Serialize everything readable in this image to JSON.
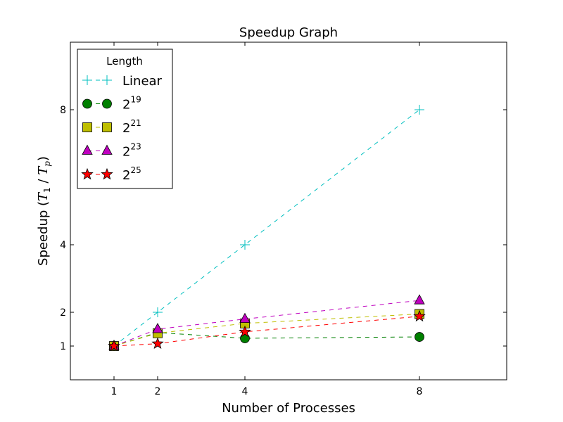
{
  "chart_data": {
    "type": "line",
    "title": "Speedup Graph",
    "xlabel": "Number of Processes",
    "ylabel_parts": {
      "main": "Speedup (",
      "t1": "T",
      "t1_sub": "1",
      "sep": " / ",
      "tp": "T",
      "tp_sub": "p",
      "end": ")"
    },
    "xlim": [
      0,
      10
    ],
    "ylim": [
      0,
      10
    ],
    "xticks": [
      1,
      2,
      4,
      8
    ],
    "yticks": [
      1,
      2,
      4,
      8
    ],
    "x": [
      1,
      2,
      4,
      8
    ],
    "legend": {
      "title": "Length",
      "location": "top-left"
    },
    "series": [
      {
        "name": "Linear",
        "base": "",
        "exp": "",
        "marker": "plus",
        "color": "#00bfbf",
        "values": [
          1,
          2,
          4,
          8
        ]
      },
      {
        "name": "2^19",
        "base": "2",
        "exp": "19",
        "marker": "circle",
        "color": "#008000",
        "values": [
          1.0,
          1.4,
          1.23,
          1.27
        ]
      },
      {
        "name": "2^21",
        "base": "2",
        "exp": "21",
        "marker": "square",
        "color": "#bfbf00",
        "values": [
          1.0,
          1.38,
          1.67,
          1.95
        ]
      },
      {
        "name": "2^23",
        "base": "2",
        "exp": "23",
        "marker": "triangle",
        "color": "#bf00bf",
        "values": [
          1.0,
          1.5,
          1.8,
          2.35
        ]
      },
      {
        "name": "2^25",
        "base": "2",
        "exp": "25",
        "marker": "star",
        "color": "#ff0000",
        "values": [
          1.0,
          1.07,
          1.42,
          1.88
        ]
      }
    ]
  }
}
